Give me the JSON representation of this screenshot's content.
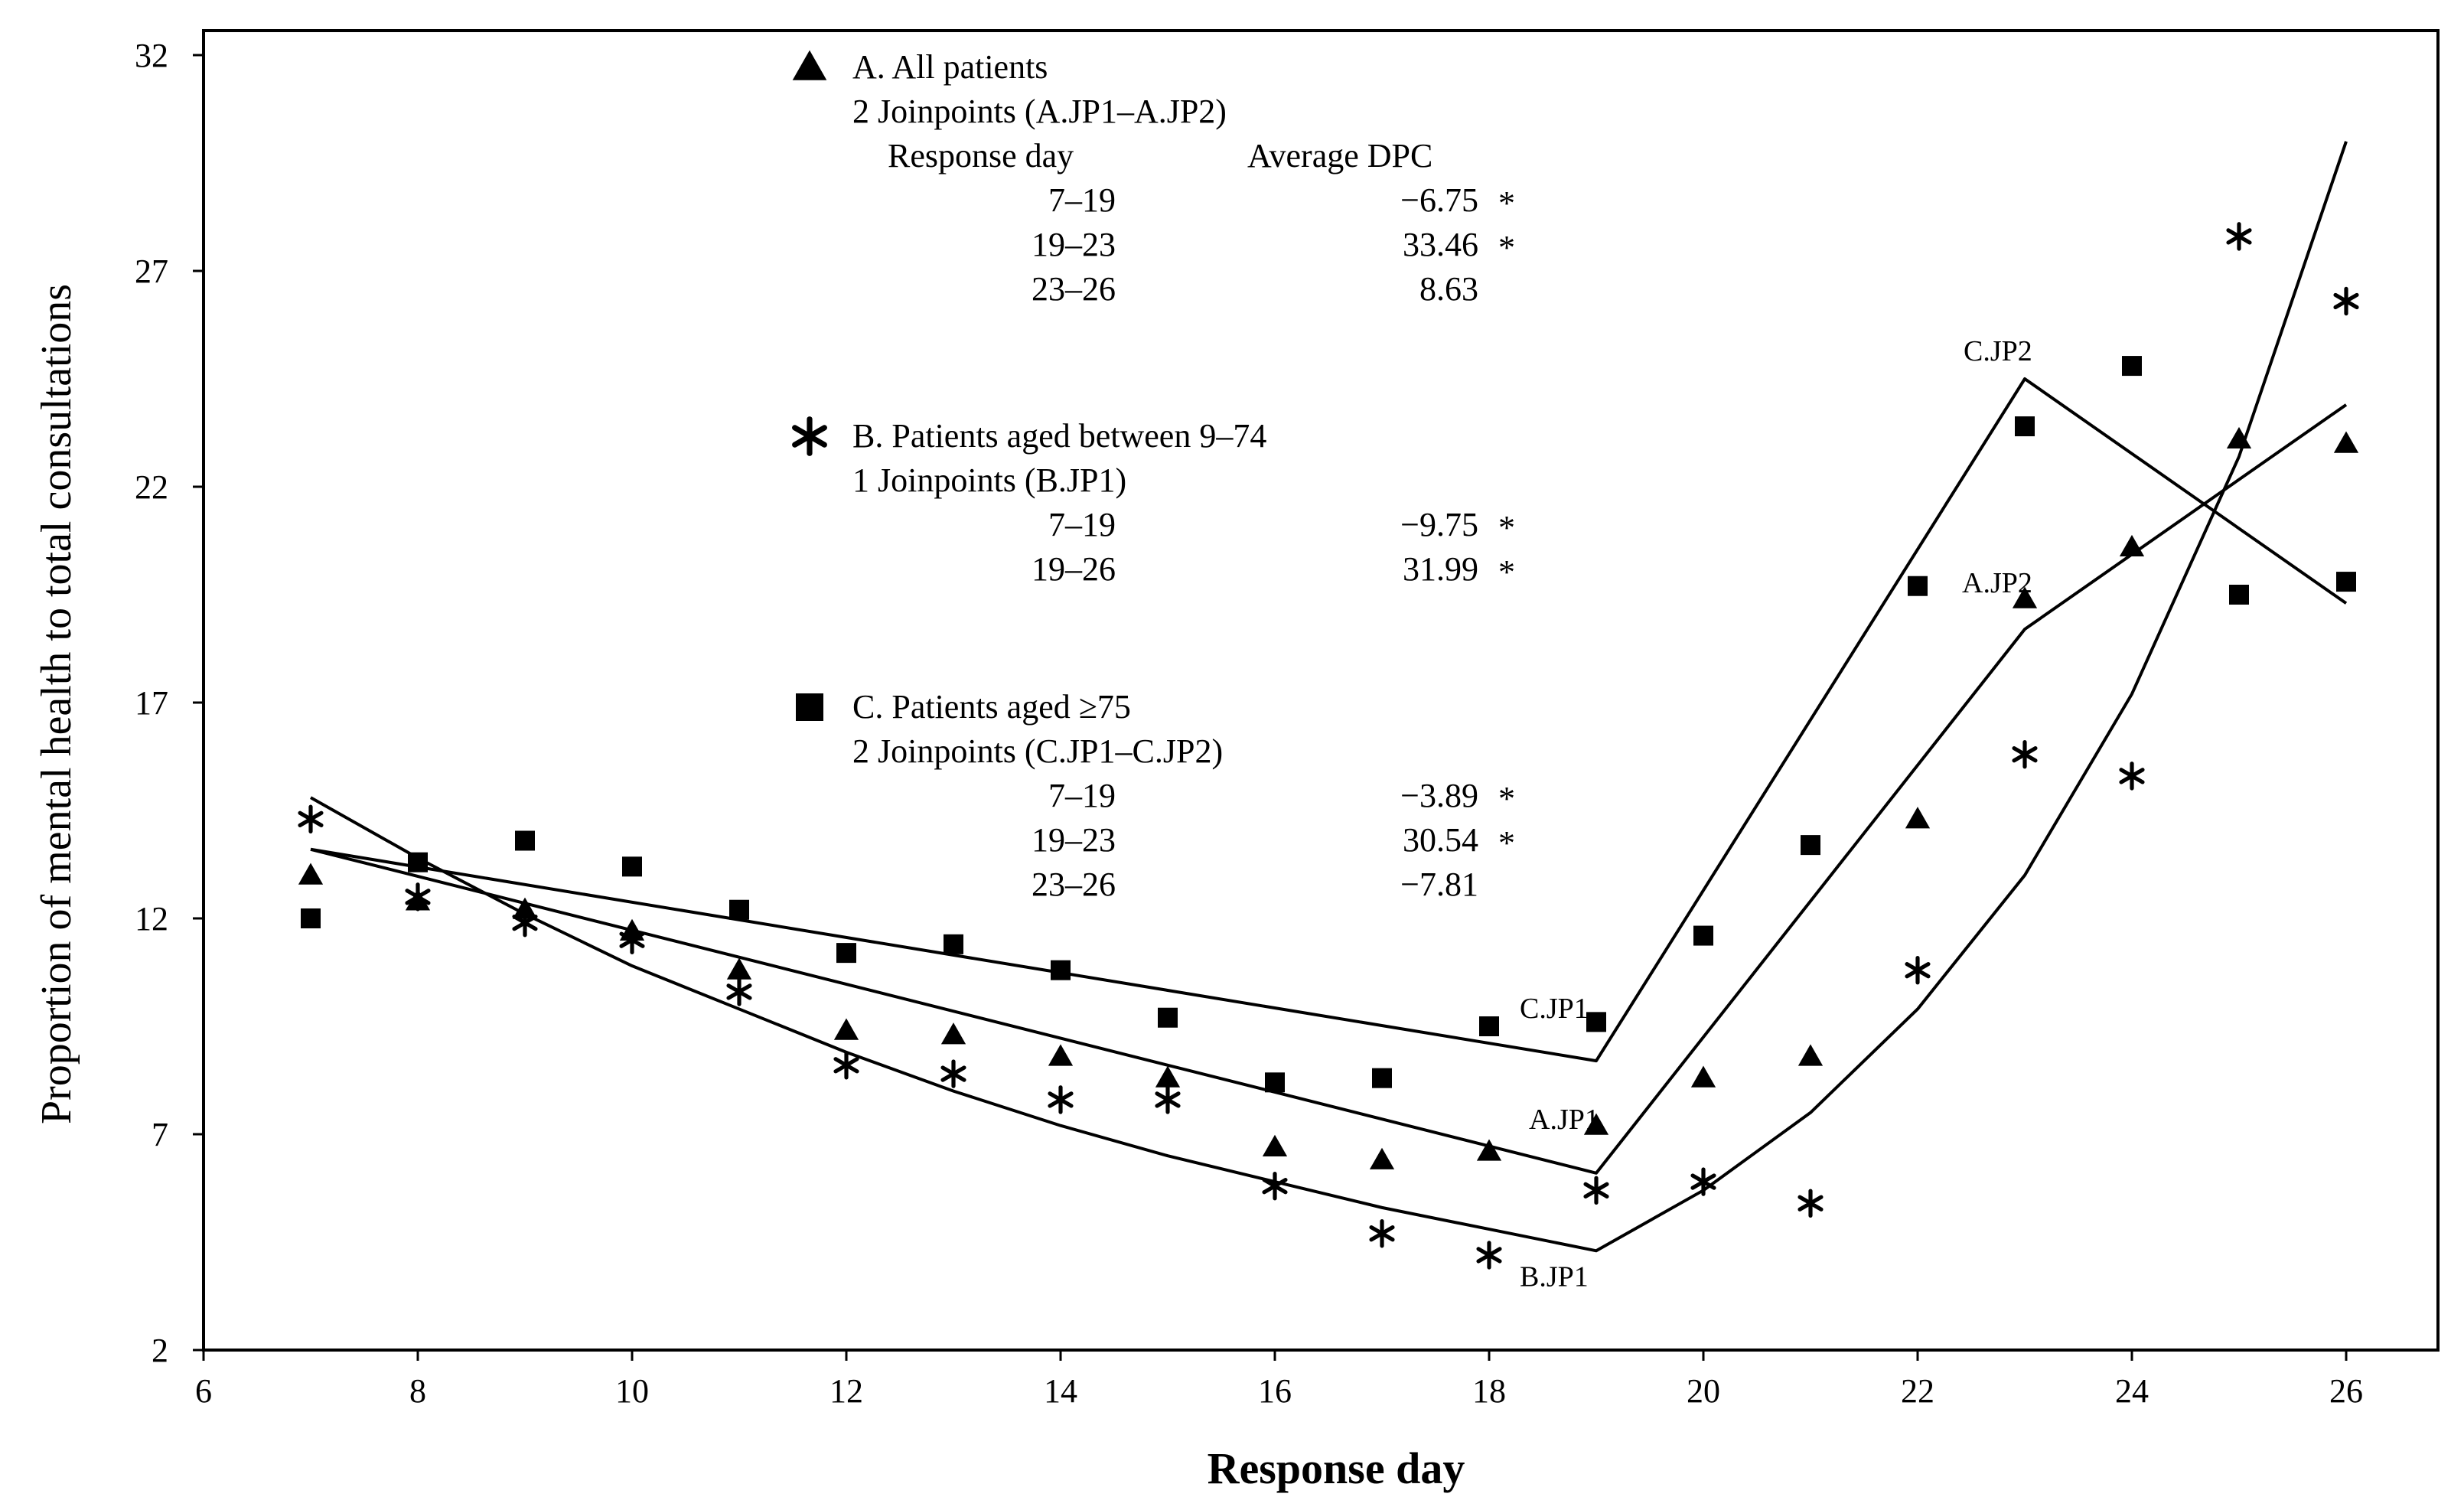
{
  "chart_data": {
    "type": "scatter",
    "xlabel": "Response day",
    "ylabel": "Proportion of mental health to total consultations",
    "xlim": [
      6,
      27
    ],
    "ylim": [
      2,
      33
    ],
    "xticks": [
      6,
      8,
      10,
      12,
      14,
      16,
      18,
      20,
      22,
      24,
      26
    ],
    "yticks": [
      2,
      7,
      12,
      17,
      22,
      27,
      32
    ],
    "grid": false,
    "series": [
      {
        "id": "A",
        "name": "A. All patients",
        "marker": "triangle",
        "x": [
          7,
          8,
          9,
          10,
          11,
          12,
          13,
          14,
          15,
          16,
          17,
          18,
          19,
          20,
          21,
          22,
          23,
          24,
          25,
          26
        ],
        "y": [
          13.0,
          12.4,
          12.2,
          11.7,
          10.8,
          9.4,
          9.3,
          8.8,
          8.3,
          6.7,
          6.4,
          6.6,
          7.2,
          8.3,
          8.8,
          14.3,
          19.4,
          20.6,
          23.1,
          23.0
        ],
        "fit": {
          "x": [
            7,
            19,
            23,
            26
          ],
          "y": [
            13.6,
            6.1,
            18.7,
            23.9
          ]
        }
      },
      {
        "id": "B",
        "name": "B. Patients aged between 9–74",
        "marker": "asterisk",
        "x": [
          7,
          8,
          9,
          10,
          11,
          12,
          13,
          14,
          15,
          16,
          17,
          18,
          19,
          20,
          21,
          22,
          23,
          24,
          25,
          26
        ],
        "y": [
          14.3,
          12.5,
          11.9,
          11.5,
          10.3,
          8.6,
          8.4,
          7.8,
          7.8,
          5.8,
          4.7,
          4.2,
          5.7,
          5.9,
          5.4,
          10.8,
          15.8,
          15.3,
          27.8,
          26.3
        ],
        "fit": {
          "x": [
            7,
            8,
            9,
            10,
            11,
            12,
            13,
            14,
            15,
            16,
            17,
            18,
            19,
            20,
            21,
            22,
            23,
            24,
            25,
            26
          ],
          "y": [
            14.8,
            13.4,
            12.1,
            10.9,
            9.9,
            8.9,
            8.0,
            7.2,
            6.5,
            5.9,
            5.3,
            4.8,
            4.3,
            5.7,
            7.5,
            9.9,
            13.0,
            17.2,
            22.7,
            30.0
          ]
        }
      },
      {
        "id": "C",
        "name": "C. Patients aged ≥75",
        "marker": "square",
        "x": [
          7,
          8,
          9,
          10,
          11,
          12,
          13,
          14,
          15,
          16,
          17,
          18,
          19,
          20,
          21,
          22,
          23,
          24,
          25,
          26
        ],
        "y": [
          12.0,
          13.3,
          13.8,
          13.2,
          12.2,
          11.2,
          11.4,
          10.8,
          9.7,
          8.2,
          8.3,
          9.5,
          9.6,
          11.6,
          13.7,
          19.7,
          23.4,
          24.8,
          19.5,
          19.8
        ],
        "fit": {
          "x": [
            7,
            19,
            23,
            26
          ],
          "y": [
            13.6,
            8.7,
            24.5,
            19.3
          ]
        }
      }
    ],
    "legend": [
      {
        "marker": "triangle",
        "title": "A. All patients",
        "joinpoints": "2 Joinpoints (A.JP1–A.JP2)",
        "header": {
          "day": "Response day",
          "dpc": "Average DPC"
        },
        "rows": [
          {
            "range": "7–19",
            "dpc": "−6.75",
            "sig": "*"
          },
          {
            "range": "19–23",
            "dpc": "33.46",
            "sig": "*"
          },
          {
            "range": "23–26",
            "dpc": "8.63",
            "sig": ""
          }
        ]
      },
      {
        "marker": "asterisk",
        "title": "B. Patients aged between 9–74",
        "joinpoints": "1 Joinpoints (B.JP1)",
        "rows": [
          {
            "range": "7–19",
            "dpc": "−9.75",
            "sig": "*"
          },
          {
            "range": "19–26",
            "dpc": "31.99",
            "sig": "*"
          }
        ]
      },
      {
        "marker": "square",
        "title": "C. Patients aged ≥75",
        "joinpoints": "2 Joinpoints (C.JP1–C.JP2)",
        "rows": [
          {
            "range": "7–19",
            "dpc": "−3.89",
            "sig": "*"
          },
          {
            "range": "19–23",
            "dpc": "30.54",
            "sig": "*"
          },
          {
            "range": "23–26",
            "dpc": "−7.81",
            "sig": ""
          }
        ]
      }
    ],
    "annotations": [
      {
        "text": "C.JP1",
        "x": 19,
        "y": 8.7
      },
      {
        "text": "A.JP1",
        "x": 19,
        "y": 6.1
      },
      {
        "text": "B.JP1",
        "x": 19,
        "y": 4.3
      },
      {
        "text": "C.JP2",
        "x": 23,
        "y": 24.5
      },
      {
        "text": "A.JP2",
        "x": 23,
        "y": 18.7
      }
    ]
  }
}
